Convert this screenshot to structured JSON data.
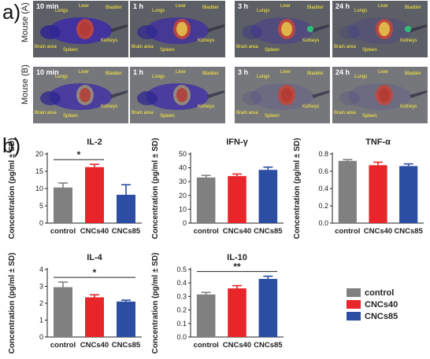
{
  "panel_a_letter": "a)",
  "panel_b_letter": "b)",
  "mouse_labels": [
    "Mouse (A)",
    "Mouse (B)"
  ],
  "image_rows": [
    {
      "times": [
        "10 min",
        "1 h",
        "3 h",
        "24 h"
      ]
    },
    {
      "times": [
        "10 min",
        "1 h",
        "3 h",
        "24 h"
      ]
    }
  ],
  "organ_labels": [
    "Liver",
    "Lungs",
    "Bladder",
    "Brain area",
    "Spleen",
    "Kidneys"
  ],
  "colors": {
    "control": "#808080",
    "CNCs40": "#e8262a",
    "CNCs85": "#2b4ea2"
  },
  "legend": [
    "control",
    "CNCs40",
    "CNCs85"
  ],
  "chart_data": [
    {
      "type": "bar",
      "title": "IL-2",
      "ylabel": "Concentration (pg/ml ± SD)",
      "categories": [
        "control",
        "CNCs40",
        "CNCs85"
      ],
      "values": [
        10.3,
        16.2,
        8.2
      ],
      "errors": [
        1.3,
        0.8,
        2.9
      ],
      "ylim": [
        0,
        20
      ],
      "yticks": [
        "0",
        "5",
        "10",
        "15",
        "20"
      ],
      "significance": [
        {
          "from": 0,
          "to": 1,
          "label": "*"
        }
      ]
    },
    {
      "type": "bar",
      "title": "IFN-γ",
      "ylabel": "Concentration (pg/ml ± SD)",
      "categories": [
        "control",
        "CNCs40",
        "CNCs85"
      ],
      "values": [
        33,
        34,
        38.5
      ],
      "errors": [
        1.5,
        1.5,
        2
      ],
      "ylim": [
        0,
        50
      ],
      "yticks": [
        "0",
        "10",
        "20",
        "30",
        "40",
        "50"
      ],
      "significance": []
    },
    {
      "type": "bar",
      "title": "TNF-α",
      "ylabel": "Concentration (pg/ml ± SD)",
      "categories": [
        "control",
        "CNCs40",
        "CNCs85"
      ],
      "values": [
        0.72,
        0.67,
        0.66
      ],
      "errors": [
        0.015,
        0.035,
        0.025
      ],
      "ylim": [
        0,
        0.8
      ],
      "yticks": [
        "0.0",
        "0.2",
        "0.4",
        "0.6",
        "0.8"
      ],
      "significance": []
    },
    {
      "type": "bar",
      "title": "IL-4",
      "ylabel": "Concentration (pg/ml ± SD)",
      "categories": [
        "control",
        "CNCs40",
        "CNCs85"
      ],
      "values": [
        2.95,
        2.35,
        2.1
      ],
      "errors": [
        0.3,
        0.15,
        0.08
      ],
      "ylim": [
        0,
        4
      ],
      "yticks": [
        "0",
        "1",
        "2",
        "3",
        "4"
      ],
      "significance": [
        {
          "from": 0,
          "to": 2,
          "label": "*"
        }
      ]
    },
    {
      "type": "bar",
      "title": "IL-10",
      "ylabel": "Concentration (pg/ml ± SD)",
      "categories": [
        "control",
        "CNCs40",
        "CNCs85"
      ],
      "values": [
        0.315,
        0.36,
        0.43
      ],
      "errors": [
        0.015,
        0.02,
        0.02
      ],
      "ylim": [
        0,
        0.5
      ],
      "yticks": [
        "0.0",
        "0.1",
        "0.2",
        "0.3",
        "0.4",
        "0.5"
      ],
      "significance": [
        {
          "from": 0,
          "to": 2,
          "label": "**"
        }
      ]
    }
  ]
}
